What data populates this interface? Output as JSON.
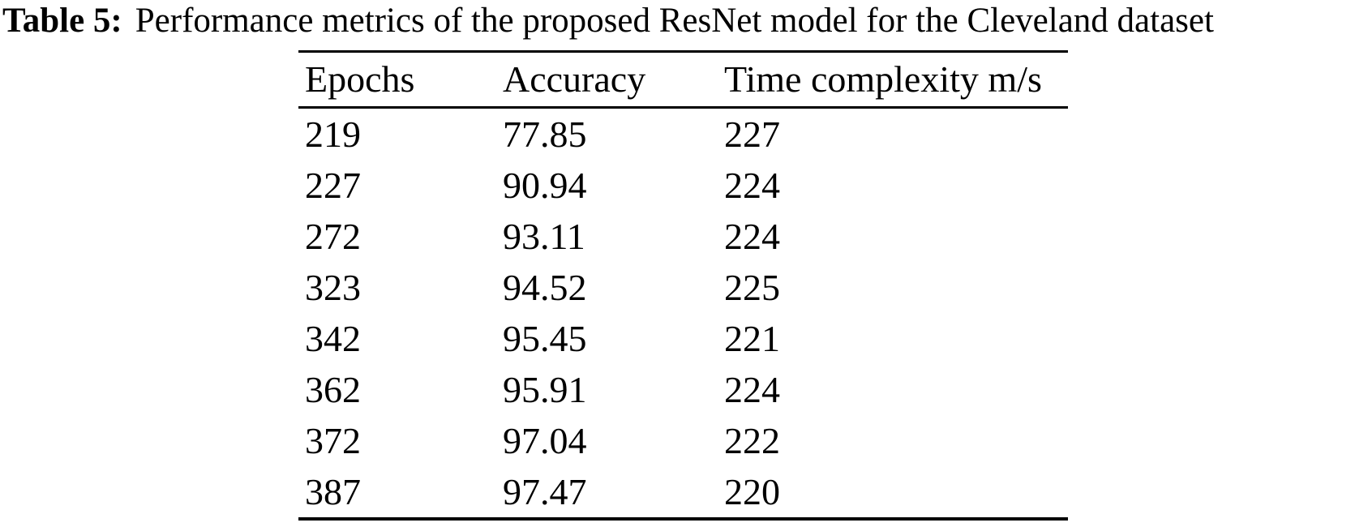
{
  "page": {
    "background_color": "#ffffff",
    "text_color": "#000000"
  },
  "caption": {
    "label": "Table 5:",
    "text": "Performance metrics of the proposed ResNet model for the Cleveland dataset"
  },
  "table": {
    "columns": [
      "Epochs",
      "Accuracy",
      "Time complexity m/s"
    ],
    "rows": [
      [
        "219",
        "77.85",
        "227"
      ],
      [
        "227",
        "90.94",
        "224"
      ],
      [
        "272",
        "93.11",
        "224"
      ],
      [
        "323",
        "94.52",
        "225"
      ],
      [
        "342",
        "95.45",
        "221"
      ],
      [
        "362",
        "95.91",
        "224"
      ],
      [
        "372",
        "97.04",
        "222"
      ],
      [
        "387",
        "97.47",
        "220"
      ]
    ]
  },
  "chart_data": {
    "type": "table",
    "title": "Table 5: Performance metrics of the proposed ResNet model for the Cleveland dataset",
    "columns": [
      "Epochs",
      "Accuracy",
      "Time complexity m/s"
    ],
    "series": [
      {
        "name": "Epochs",
        "values": [
          219,
          227,
          272,
          323,
          342,
          362,
          372,
          387
        ]
      },
      {
        "name": "Accuracy",
        "values": [
          77.85,
          90.94,
          93.11,
          94.52,
          95.45,
          95.91,
          97.04,
          97.47
        ]
      },
      {
        "name": "Time complexity m/s",
        "values": [
          227,
          224,
          224,
          225,
          221,
          224,
          222,
          220
        ]
      }
    ]
  }
}
